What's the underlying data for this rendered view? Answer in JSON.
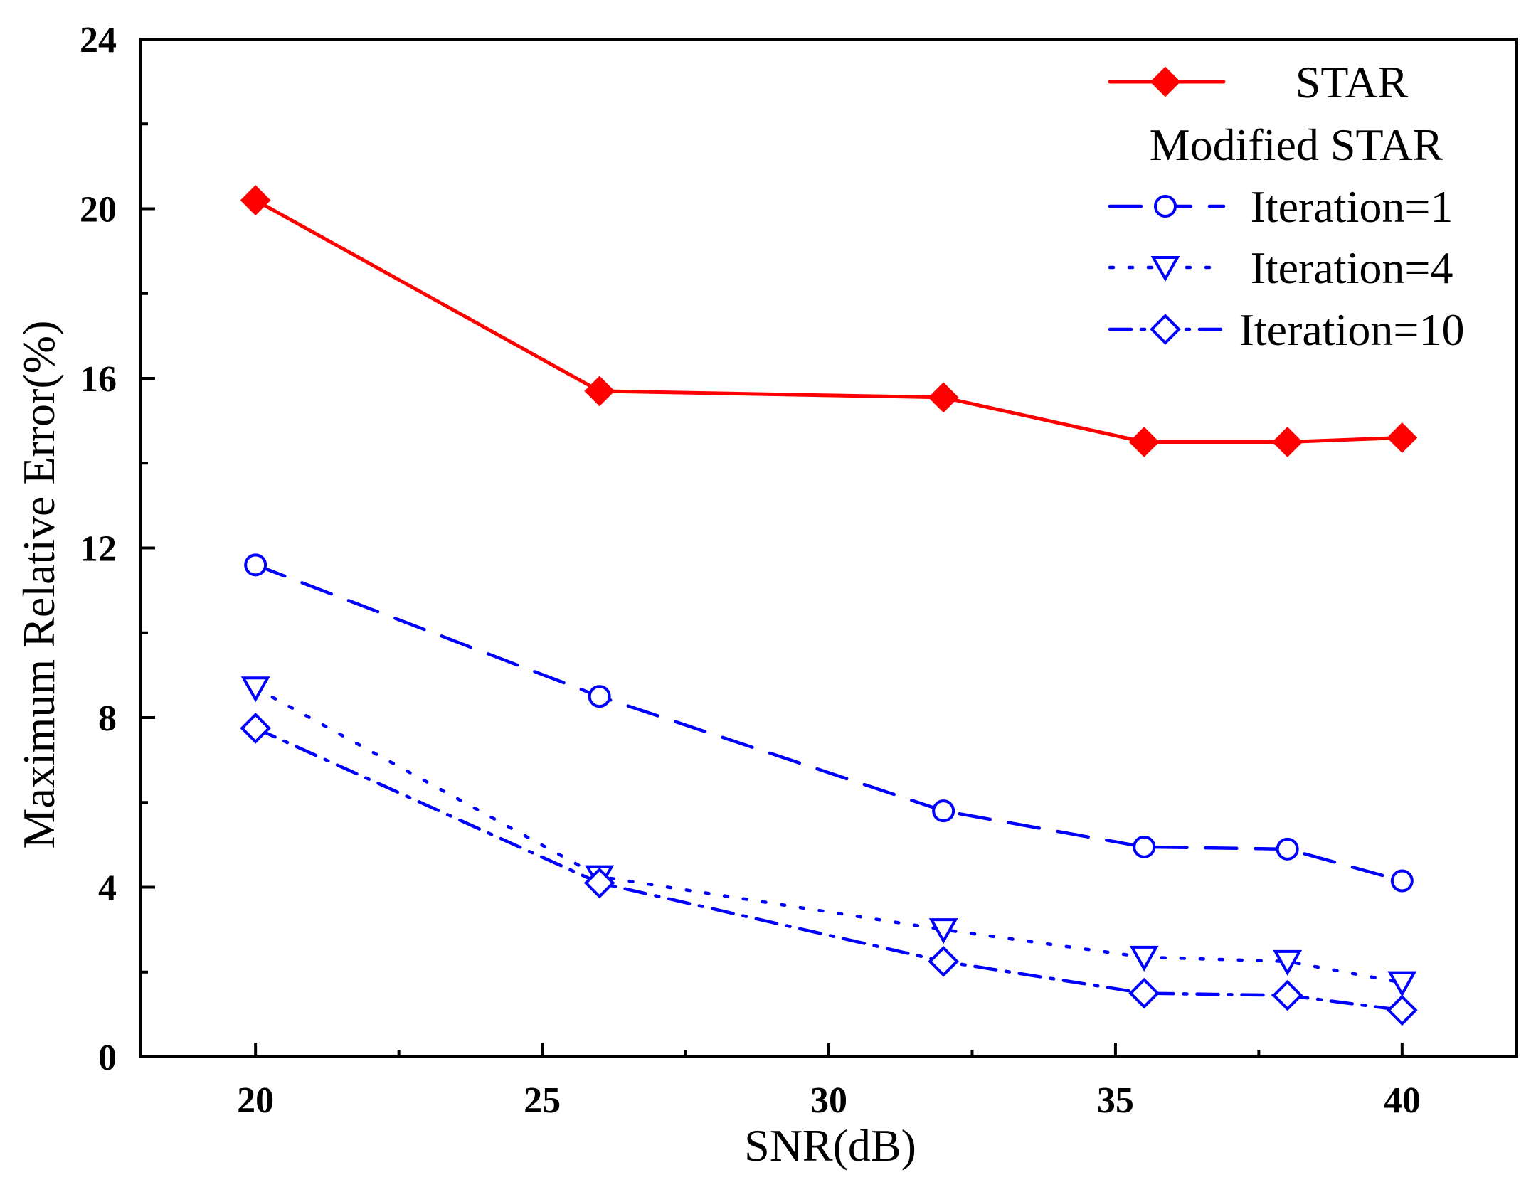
{
  "chart_data": {
    "type": "line",
    "title": "",
    "xlabel": "SNR(dB)",
    "ylabel": "Maximum Relative Error(%)",
    "xlim": [
      18,
      42
    ],
    "ylim": [
      0,
      24
    ],
    "xticks": [
      "20",
      "25",
      "30",
      "35",
      "40"
    ],
    "yticks": [
      "0",
      "4",
      "8",
      "12",
      "16",
      "20",
      "24"
    ],
    "grid": false,
    "legend_position": "top-right",
    "legend_group_heading": "Modified STAR",
    "x": [
      20,
      26,
      32,
      35.5,
      38,
      40
    ],
    "series": [
      {
        "name": "STAR",
        "values": [
          20.2,
          15.7,
          15.55,
          14.5,
          14.5,
          14.6
        ],
        "color": "#ff0000",
        "marker": "filled-diamond",
        "line_style": "solid"
      },
      {
        "name": "Iteration=1",
        "values": [
          11.6,
          8.5,
          5.8,
          4.95,
          4.9,
          4.15
        ],
        "color": "#0000ff",
        "marker": "open-circle",
        "line_style": "dashed"
      },
      {
        "name": "Iteration=4",
        "values": [
          8.7,
          4.25,
          3.0,
          2.35,
          2.25,
          1.75
        ],
        "color": "#0000ff",
        "marker": "open-triangle-down",
        "line_style": "dotted"
      },
      {
        "name": "Iteration=10",
        "values": [
          7.75,
          4.1,
          2.25,
          1.5,
          1.45,
          1.1
        ],
        "color": "#0000ff",
        "marker": "open-diamond",
        "line_style": "dash-dot"
      }
    ]
  }
}
